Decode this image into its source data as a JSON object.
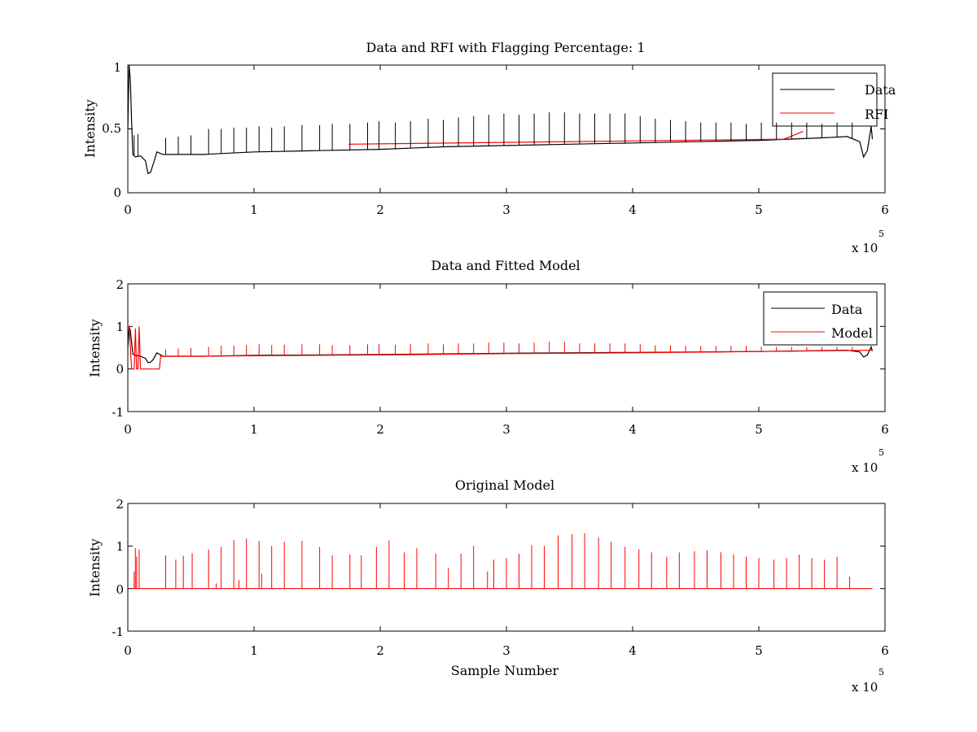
{
  "chart_data": [
    {
      "type": "line",
      "title": "Data and RFI with Flagging Percentage: 1",
      "xlabel": "",
      "ylabel": "Intensity",
      "xlim": [
        0,
        600000
      ],
      "ylim": [
        0,
        1
      ],
      "x_ticks": [
        "0",
        "1",
        "2",
        "3",
        "4",
        "5",
        "6"
      ],
      "y_ticks": [
        "0",
        "0.5",
        "1"
      ],
      "x_multiplier": "x 10",
      "x_exponent": "5",
      "grid": false,
      "legend": "top-right",
      "series": [
        {
          "name": "Data",
          "color": "#000000",
          "x": [
            0,
            1000,
            2000,
            3000,
            4000,
            6000,
            10000,
            14000,
            16000,
            18000,
            20000,
            23000,
            28000,
            40000,
            60000,
            80000,
            100000,
            150000,
            200000,
            250000,
            300000,
            350000,
            400000,
            450000,
            500000,
            550000,
            570000,
            580000,
            583000,
            586000,
            589000,
            590000
          ],
          "y": [
            0.5,
            1.0,
            0.88,
            0.55,
            0.3,
            0.28,
            0.29,
            0.25,
            0.15,
            0.16,
            0.22,
            0.32,
            0.3,
            0.3,
            0.3,
            0.31,
            0.32,
            0.33,
            0.34,
            0.36,
            0.37,
            0.38,
            0.39,
            0.4,
            0.41,
            0.43,
            0.44,
            0.4,
            0.28,
            0.33,
            0.52,
            0.42
          ]
        },
        {
          "name": "RFI",
          "color": "#ff0000",
          "x": [
            175000,
            520000,
            525000,
            535000
          ],
          "y": [
            0.38,
            0.42,
            0.44,
            0.48
          ]
        }
      ],
      "spikes": {
        "x": [
          5000,
          8000,
          30000,
          40000,
          50000,
          64000,
          74000,
          84000,
          94000,
          104000,
          114000,
          124000,
          138000,
          152000,
          162000,
          176000,
          190000,
          199000,
          212000,
          224000,
          238000,
          250000,
          262000,
          274000,
          286000,
          298000,
          310000,
          322000,
          334000,
          346000,
          358000,
          370000,
          382000,
          394000,
          406000,
          418000,
          430000,
          442000,
          454000,
          466000,
          478000,
          490000,
          502000,
          514000,
          526000,
          538000,
          550000,
          562000,
          574000
        ],
        "y": [
          0.45,
          0.46,
          0.43,
          0.44,
          0.45,
          0.5,
          0.5,
          0.51,
          0.51,
          0.52,
          0.51,
          0.52,
          0.53,
          0.53,
          0.54,
          0.54,
          0.55,
          0.56,
          0.55,
          0.56,
          0.58,
          0.57,
          0.59,
          0.6,
          0.61,
          0.62,
          0.61,
          0.62,
          0.63,
          0.63,
          0.62,
          0.62,
          0.62,
          0.62,
          0.6,
          0.58,
          0.57,
          0.56,
          0.55,
          0.55,
          0.55,
          0.54,
          0.55,
          0.55,
          0.55,
          0.55,
          0.54,
          0.55,
          0.55
        ]
      }
    },
    {
      "type": "line",
      "title": "Data and Fitted Model",
      "xlabel": "",
      "ylabel": "Intensity",
      "xlim": [
        0,
        600000
      ],
      "ylim": [
        -1,
        2
      ],
      "x_ticks": [
        "0",
        "1",
        "2",
        "3",
        "4",
        "5",
        "6"
      ],
      "y_ticks": [
        "-1",
        "0",
        "1",
        "2"
      ],
      "x_multiplier": "x 10",
      "x_exponent": "5",
      "grid": false,
      "legend": "top-right",
      "series": [
        {
          "name": "Data",
          "color": "#000000",
          "x": [
            0,
            1000,
            2000,
            4000,
            6000,
            10000,
            14000,
            16000,
            18000,
            20000,
            23000,
            28000,
            60000,
            100000,
            200000,
            300000,
            400000,
            500000,
            570000,
            580000,
            583000,
            586000,
            589000,
            590000
          ],
          "y": [
            0.5,
            1.0,
            0.9,
            0.35,
            0.32,
            0.3,
            0.25,
            0.15,
            0.16,
            0.22,
            0.38,
            0.3,
            0.3,
            0.32,
            0.34,
            0.37,
            0.39,
            0.41,
            0.44,
            0.4,
            0.28,
            0.33,
            0.52,
            0.42
          ]
        },
        {
          "name": "Model",
          "color": "#ff0000",
          "x": [
            0,
            1000,
            3000,
            5000,
            6000,
            7000,
            8000,
            9000,
            10000,
            12000,
            25000,
            26000,
            60000,
            100000,
            200000,
            300000,
            400000,
            500000,
            560000,
            590000
          ],
          "y": [
            1.0,
            1.0,
            0.0,
            0.0,
            0.95,
            0.0,
            0.0,
            1.0,
            0.0,
            0.0,
            0.0,
            0.3,
            0.3,
            0.31,
            0.33,
            0.36,
            0.38,
            0.41,
            0.43,
            0.44
          ]
        }
      ],
      "spikes": {
        "x": [
          30000,
          40000,
          50000,
          64000,
          74000,
          84000,
          94000,
          104000,
          114000,
          124000,
          138000,
          152000,
          162000,
          176000,
          190000,
          199000,
          212000,
          224000,
          238000,
          250000,
          262000,
          274000,
          286000,
          298000,
          310000,
          322000,
          334000,
          346000,
          358000,
          370000,
          382000,
          394000,
          406000,
          418000,
          430000,
          442000,
          454000,
          466000,
          478000,
          490000,
          502000,
          514000,
          526000,
          538000,
          550000,
          562000,
          574000
        ],
        "y": [
          0.46,
          0.48,
          0.49,
          0.52,
          0.55,
          0.55,
          0.56,
          0.58,
          0.56,
          0.57,
          0.58,
          0.58,
          0.56,
          0.56,
          0.58,
          0.58,
          0.57,
          0.58,
          0.6,
          0.58,
          0.6,
          0.6,
          0.62,
          0.62,
          0.6,
          0.62,
          0.64,
          0.64,
          0.6,
          0.6,
          0.6,
          0.6,
          0.58,
          0.56,
          0.56,
          0.54,
          0.54,
          0.54,
          0.54,
          0.54,
          0.52,
          0.52,
          0.52,
          0.52,
          0.52,
          0.52,
          0.52
        ]
      }
    },
    {
      "type": "line",
      "title": "Original Model",
      "xlabel": "Sample Number",
      "ylabel": "Intensity",
      "xlim": [
        0,
        600000
      ],
      "ylim": [
        -1,
        2
      ],
      "x_ticks": [
        "0",
        "1",
        "2",
        "3",
        "4",
        "5",
        "6"
      ],
      "y_ticks": [
        "-1",
        "0",
        "1",
        "2"
      ],
      "x_multiplier": "x 10",
      "x_exponent": "5",
      "grid": false,
      "series": [
        {
          "color": "#ff0000",
          "x": [
            3000,
            590000
          ],
          "y": [
            0,
            0
          ]
        }
      ],
      "spikes": {
        "x": [
          5000,
          6000,
          7000,
          9000,
          30000,
          38000,
          44000,
          51000,
          64000,
          70000,
          74000,
          84000,
          88000,
          94000,
          104000,
          106000,
          114000,
          124000,
          138000,
          152000,
          162000,
          176000,
          185000,
          197000,
          207000,
          219000,
          229000,
          244000,
          254000,
          264000,
          274000,
          285000,
          290000,
          300000,
          310000,
          320000,
          330000,
          341000,
          352000,
          362000,
          373000,
          383000,
          394000,
          405000,
          415000,
          427000,
          437000,
          449000,
          459000,
          470000,
          480000,
          490000,
          500000,
          512000,
          522000,
          532000,
          542000,
          552000,
          562000,
          572000
        ],
        "y": [
          0.4,
          0.95,
          0.75,
          0.92,
          0.78,
          0.68,
          0.77,
          0.83,
          0.92,
          0.12,
          0.98,
          1.14,
          0.2,
          1.18,
          1.12,
          0.35,
          1.0,
          1.1,
          1.12,
          0.98,
          0.78,
          0.8,
          0.78,
          0.98,
          1.13,
          0.85,
          0.95,
          0.82,
          0.48,
          0.82,
          1.0,
          0.4,
          0.68,
          0.72,
          0.82,
          1.02,
          1.0,
          1.25,
          1.28,
          1.3,
          1.2,
          1.1,
          0.98,
          0.92,
          0.85,
          0.75,
          0.85,
          0.88,
          0.9,
          0.85,
          0.8,
          0.75,
          0.72,
          0.68,
          0.72,
          0.8,
          0.72,
          0.68,
          0.75,
          0.28
        ]
      }
    }
  ]
}
